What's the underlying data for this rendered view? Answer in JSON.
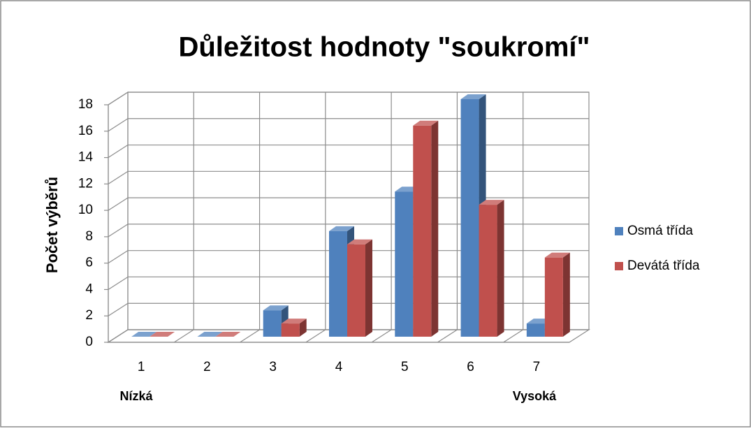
{
  "chart_data": {
    "type": "bar3d",
    "title": "Důležitost hodnoty \"soukromí\"",
    "y_label": "Počet výběrů",
    "categories": [
      "1",
      "2",
      "3",
      "4",
      "5",
      "6",
      "7"
    ],
    "series": [
      {
        "name": "Osmá třída",
        "color": "#4f81bd",
        "values": [
          0,
          0,
          2,
          8,
          11,
          18,
          1
        ]
      },
      {
        "name": "Devátá třída",
        "color": "#c0504d",
        "values": [
          0,
          0,
          1,
          7,
          16,
          10,
          6
        ]
      }
    ],
    "annotations": [
      "Nízká",
      "Vysoká"
    ],
    "ylim": [
      0,
      18
    ],
    "yticks": [
      0,
      2,
      4,
      6,
      8,
      10,
      12,
      14,
      16,
      18
    ],
    "grid": true,
    "legend": "right"
  }
}
